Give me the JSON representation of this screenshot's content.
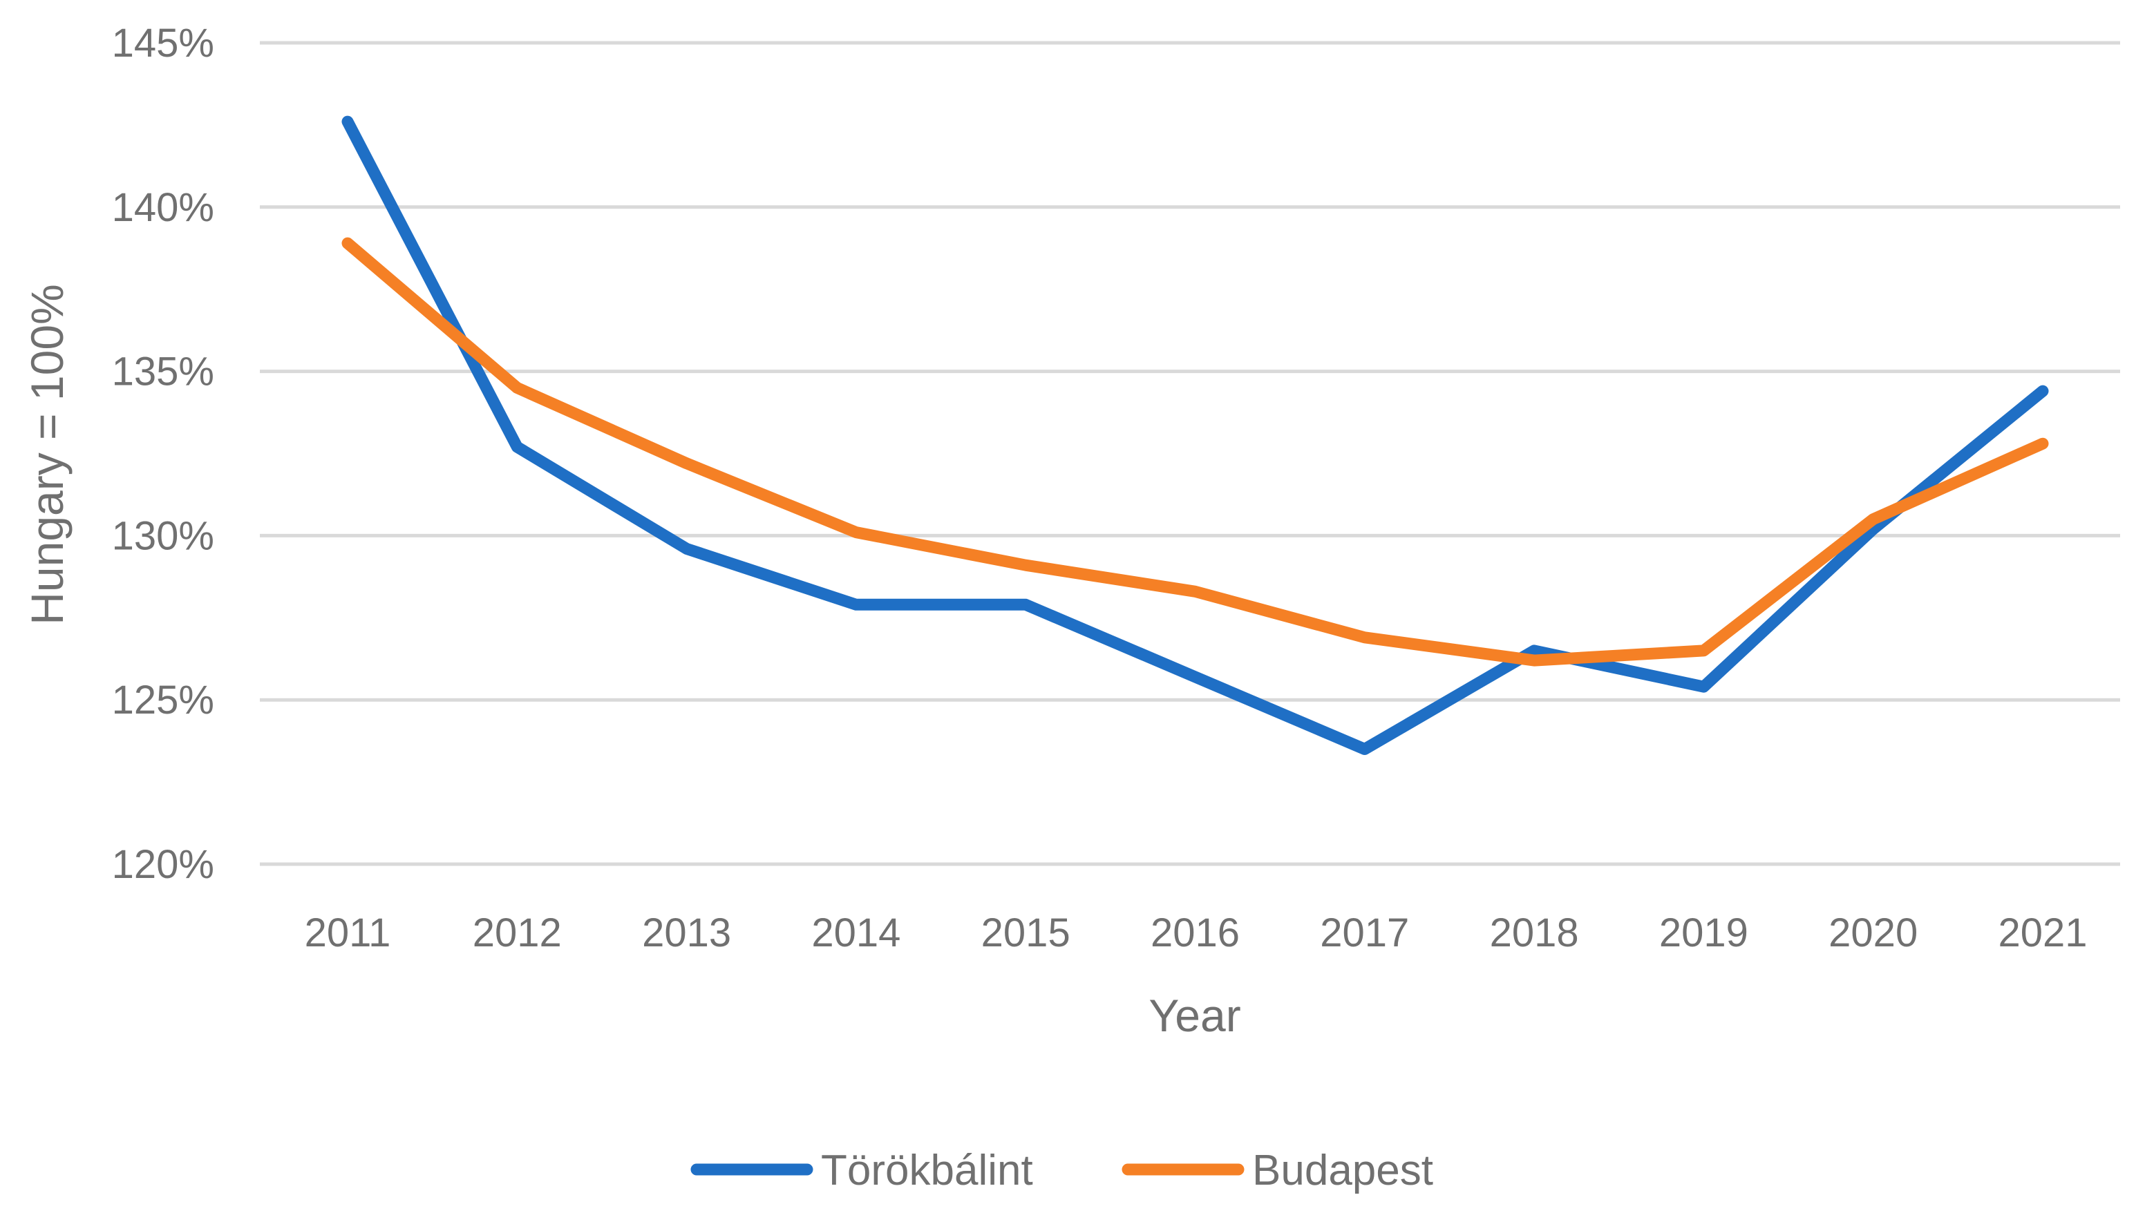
{
  "chart_data": {
    "type": "line",
    "title": "",
    "xlabel": "Year",
    "ylabel": "Hungary = 100%",
    "categories": [
      "2011",
      "2012",
      "2013",
      "2014",
      "2015",
      "2016",
      "2017",
      "2018",
      "2019",
      "2020",
      "2021"
    ],
    "ylim": [
      120,
      145
    ],
    "yticks": [
      120,
      125,
      130,
      135,
      140,
      145
    ],
    "ytick_labels": [
      "120%",
      "125%",
      "130%",
      "135%",
      "140%",
      "145%"
    ],
    "grid": true,
    "legend_position": "bottom",
    "series": [
      {
        "name": "Törökbálint",
        "color": "#1f6fc5",
        "values": [
          142.6,
          132.7,
          129.6,
          127.9,
          127.9,
          125.7,
          123.5,
          126.5,
          125.4,
          130.2,
          134.4
        ]
      },
      {
        "name": "Budapest",
        "color": "#f58025",
        "values": [
          138.9,
          134.5,
          132.2,
          130.1,
          129.1,
          128.3,
          126.9,
          126.2,
          126.5,
          130.5,
          132.8
        ]
      }
    ]
  }
}
